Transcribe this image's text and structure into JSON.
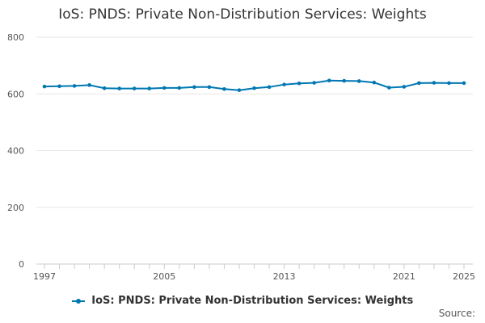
{
  "chart_data": {
    "type": "line",
    "title": "IoS: PNDS: Private Non-Distribution Services: Weights",
    "xlabel": "",
    "ylabel": "",
    "x": [
      1997,
      1998,
      1999,
      2000,
      2001,
      2002,
      2003,
      2004,
      2005,
      2006,
      2007,
      2008,
      2009,
      2010,
      2011,
      2012,
      2013,
      2014,
      2015,
      2016,
      2017,
      2018,
      2019,
      2020,
      2021,
      2022,
      2023,
      2024,
      2025
    ],
    "series": [
      {
        "name": "IoS: PNDS: Private Non-Distribution Services: Weights",
        "color": "#0077b3",
        "values": [
          626,
          627,
          628,
          631,
          620,
          619,
          619,
          619,
          621,
          621,
          624,
          624,
          617,
          613,
          620,
          624,
          633,
          637,
          639,
          647,
          646,
          645,
          640,
          622,
          625,
          638,
          639,
          638,
          638
        ]
      }
    ],
    "ylim": [
      0,
      800
    ],
    "yticks": [
      0,
      200,
      400,
      600,
      800
    ],
    "xlim": [
      1997,
      2025
    ],
    "xticks": [
      1997,
      2005,
      2013,
      2021,
      2025
    ],
    "grid": true,
    "legend": "bottom-center"
  },
  "footer": {
    "source_label": "Source:"
  }
}
